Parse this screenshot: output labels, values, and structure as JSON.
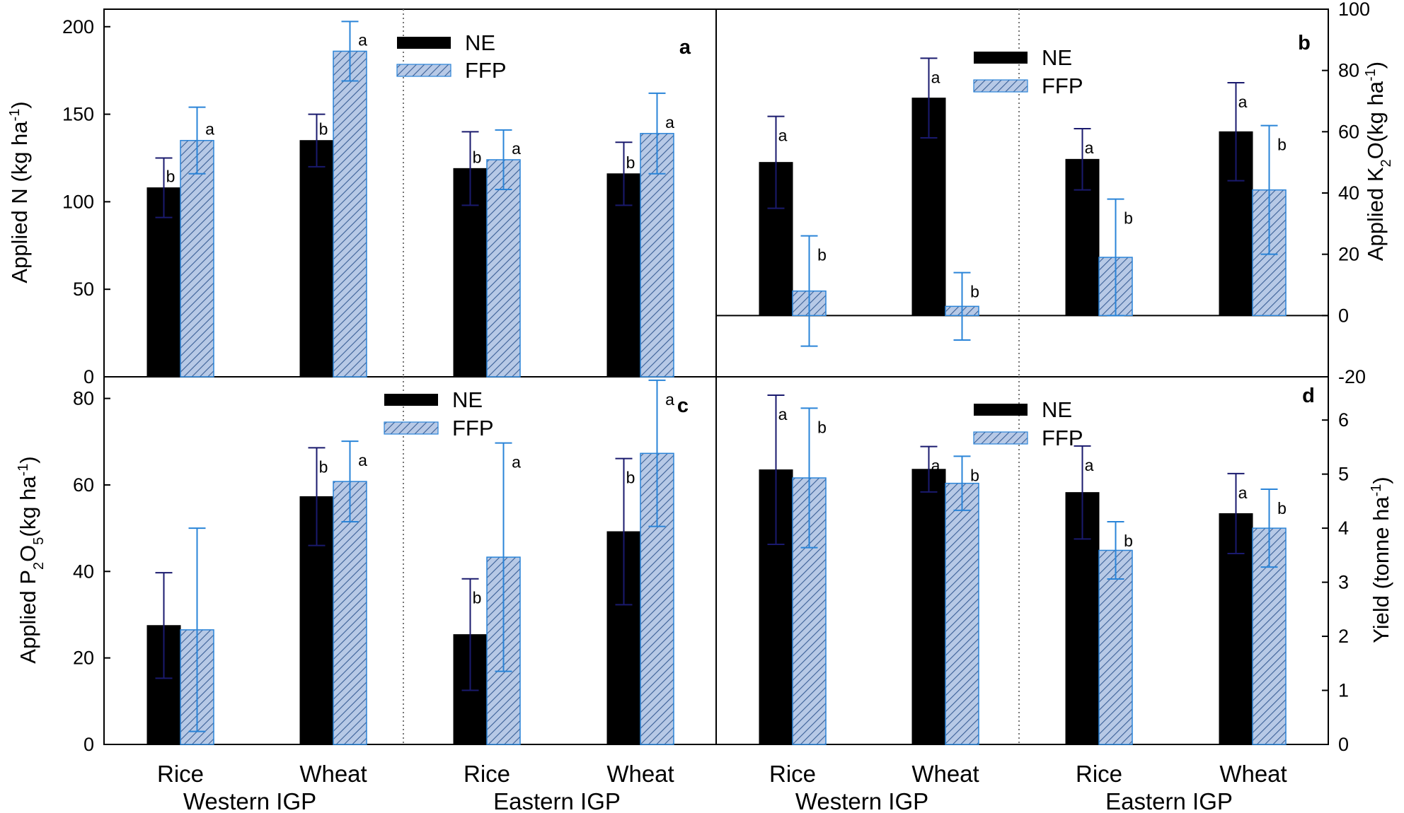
{
  "colors": {
    "ne_fill": "#000000",
    "ne_err": "#1a1a6e",
    "ffp_fill": "#b7c9e6",
    "ffp_hatch": "#3a5f96",
    "ffp_err": "#2a84d8",
    "frame": "#000000"
  },
  "chart_data": [
    {
      "id": "a",
      "type": "bar",
      "panel_label": "a",
      "ylabel": "Applied N (kg ha-1)",
      "ylabel_parts": [
        "Applied N (kg ha",
        "-1",
        ")"
      ],
      "ylim": [
        0,
        210
      ],
      "yticks": [
        0,
        50,
        100,
        150,
        200
      ],
      "categories": [
        "Rice",
        "Wheat",
        "Rice",
        "Wheat"
      ],
      "legend": [
        "NE",
        "FFP"
      ],
      "series": [
        {
          "name": "NE",
          "values": [
            108,
            135,
            119,
            116
          ],
          "err": [
            17,
            15,
            21,
            18
          ],
          "sig": [
            "b",
            "b",
            "b",
            "b"
          ]
        },
        {
          "name": "FFP",
          "values": [
            135,
            186,
            124,
            139
          ],
          "err": [
            19,
            17,
            17,
            23
          ],
          "sig": [
            "a",
            "a",
            "a",
            "a"
          ]
        }
      ]
    },
    {
      "id": "b",
      "type": "bar",
      "panel_label": "b",
      "ylabel": "Applied K2O(kg ha-1)",
      "ylabel_parts": [
        "Applied K",
        "2",
        "O(kg ha",
        "-1",
        ")"
      ],
      "ylim": [
        -20,
        100
      ],
      "yticks": [
        -20,
        0,
        20,
        40,
        60,
        80,
        100
      ],
      "categories": [
        "Rice",
        "Wheat",
        "Rice",
        "Wheat"
      ],
      "legend": [
        "NE",
        "FFP"
      ],
      "series": [
        {
          "name": "NE",
          "values": [
            50,
            71,
            51,
            60
          ],
          "err": [
            15,
            13,
            10,
            16
          ],
          "sig": [
            "a",
            "a",
            "a",
            "a"
          ]
        },
        {
          "name": "FFP",
          "values": [
            8,
            3,
            19,
            41
          ],
          "err": [
            18,
            11,
            19,
            21
          ],
          "sig": [
            "b",
            "b",
            "b",
            "b"
          ]
        }
      ]
    },
    {
      "id": "c",
      "type": "bar",
      "panel_label": "c",
      "ylabel": "Applied P2O5(kg ha-1)",
      "ylabel_parts": [
        "Applied P",
        "2",
        "O",
        "5",
        "(kg ha",
        "-1",
        ")"
      ],
      "ylim": [
        0,
        85
      ],
      "yticks": [
        0,
        20,
        40,
        60,
        80
      ],
      "categories": [
        "Rice",
        "Wheat",
        "Rice",
        "Wheat"
      ],
      "legend": [
        "NE",
        "FFP"
      ],
      "series": [
        {
          "name": "NE",
          "values": [
            27.5,
            57.3,
            25.4,
            49.2
          ],
          "err": [
            12.2,
            11.3,
            12.9,
            16.9
          ],
          "sig": [
            "",
            "b",
            "b",
            "b"
          ]
        },
        {
          "name": "FFP",
          "values": [
            26.5,
            60.8,
            43.3,
            67.3
          ],
          "err": [
            23.5,
            9.3,
            26.4,
            16.9
          ],
          "sig": [
            "",
            "a",
            "a",
            "a"
          ]
        }
      ]
    },
    {
      "id": "d",
      "type": "bar",
      "panel_label": "d",
      "ylabel": "Yield (tonne ha-1)",
      "ylabel_parts": [
        "Yield (tonne ha",
        "-1",
        ")"
      ],
      "ylim": [
        0,
        6.8
      ],
      "yticks": [
        0,
        1,
        2,
        3,
        4,
        5,
        6
      ],
      "categories": [
        "Rice",
        "Wheat",
        "Rice",
        "Wheat"
      ],
      "legend": [
        "NE",
        "FFP"
      ],
      "series": [
        {
          "name": "NE",
          "values": [
            5.08,
            5.09,
            4.66,
            4.27
          ],
          "err": [
            1.38,
            0.42,
            0.86,
            0.74
          ],
          "sig": [
            "a",
            "a",
            "a",
            "a"
          ]
        },
        {
          "name": "FFP",
          "values": [
            4.93,
            4.83,
            3.59,
            4.0
          ],
          "err": [
            1.29,
            0.5,
            0.53,
            0.72
          ],
          "sig": [
            "b",
            "b",
            "b",
            "b"
          ]
        }
      ]
    }
  ],
  "group_labels": [
    "Western IGP",
    "Eastern IGP",
    "Western IGP",
    "Eastern IGP"
  ]
}
